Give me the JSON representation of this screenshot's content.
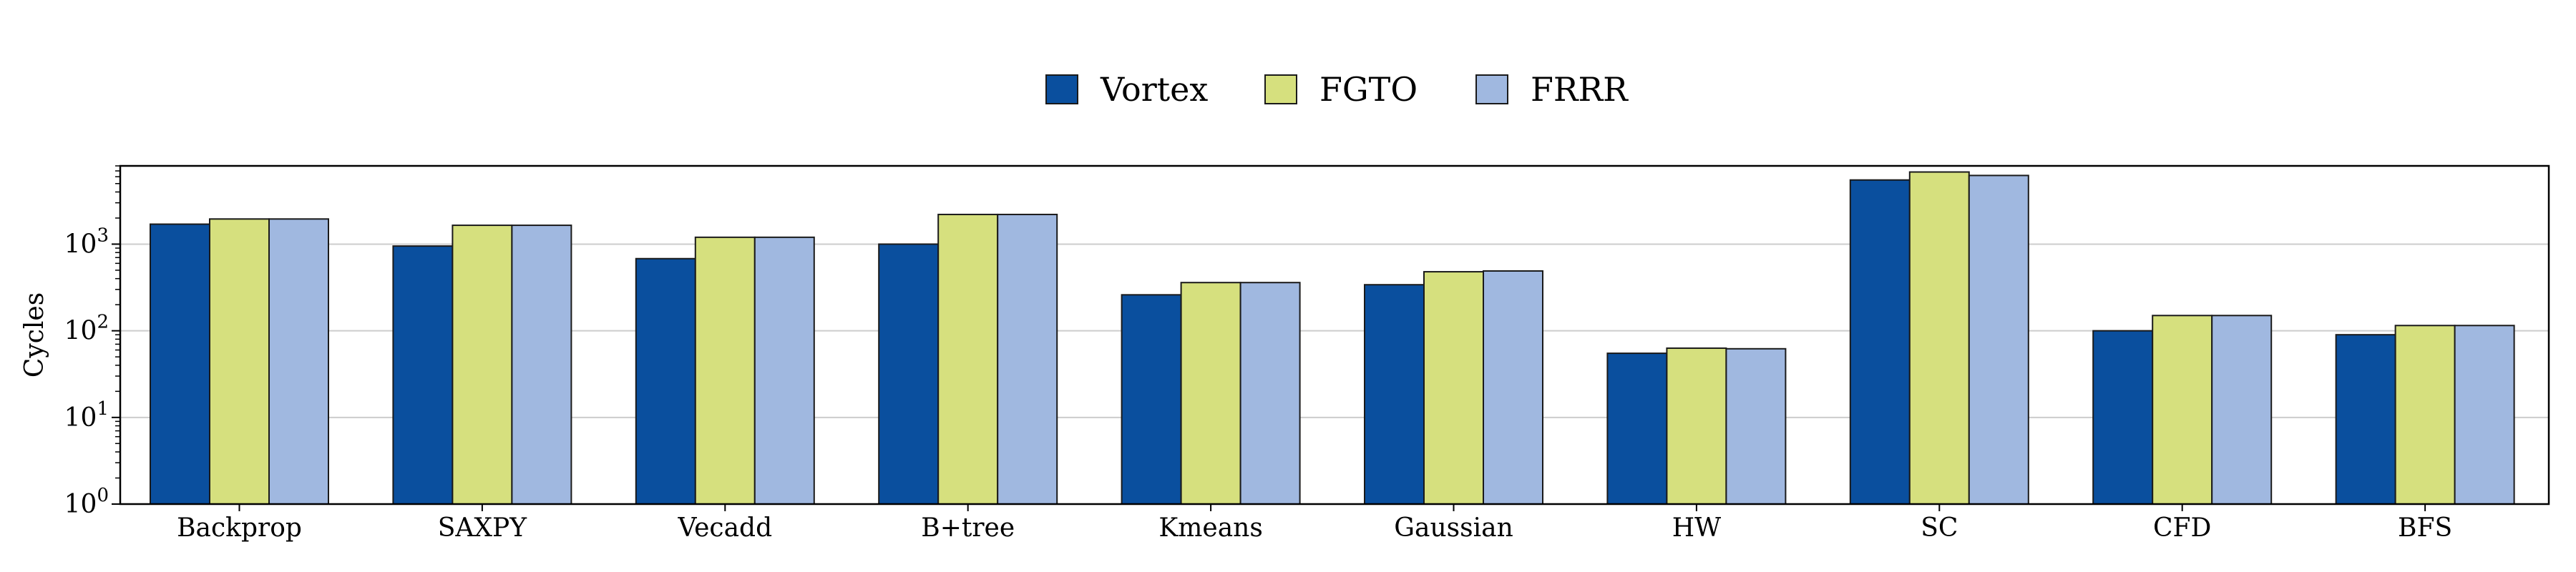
{
  "chart_data": {
    "type": "bar",
    "ylabel": "Cycles",
    "yscale": "log",
    "ylim": [
      1,
      8000
    ],
    "yticks": [
      {
        "value": 1,
        "mantissa": "10",
        "exp": "0"
      },
      {
        "value": 10,
        "mantissa": "10",
        "exp": "1"
      },
      {
        "value": 100,
        "mantissa": "10",
        "exp": "2"
      },
      {
        "value": 1000,
        "mantissa": "10",
        "exp": "3"
      }
    ],
    "grid": "horizontal",
    "legend_position": "top-center",
    "categories": [
      "Backprop",
      "SAXPY",
      "Vecadd",
      "B+tree",
      "Kmeans",
      "Gaussian",
      "HW",
      "SC",
      "CFD",
      "BFS"
    ],
    "series": [
      {
        "name": "Vortex",
        "color": "#0a4f9e",
        "values": [
          1700,
          950,
          680,
          1000,
          260,
          340,
          55,
          5500,
          100,
          90
        ]
      },
      {
        "name": "FGTO",
        "color": "#d6e07e",
        "values": [
          1950,
          1650,
          1200,
          2200,
          360,
          480,
          63,
          6800,
          150,
          115
        ]
      },
      {
        "name": "FRRR",
        "color": "#a0b8e0",
        "values": [
          1950,
          1650,
          1200,
          2200,
          360,
          490,
          62,
          6200,
          150,
          115
        ]
      }
    ]
  }
}
